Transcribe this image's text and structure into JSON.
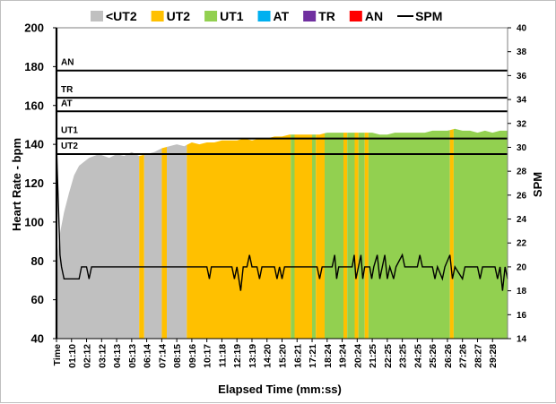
{
  "chart_data": {
    "type": "area",
    "legend": {
      "placement": "top",
      "items": [
        {
          "name": "<UT2",
          "color": "#c0c0c0",
          "kind": "box"
        },
        {
          "name": "UT2",
          "color": "#ffc000",
          "kind": "box"
        },
        {
          "name": "UT1",
          "color": "#92d050",
          "kind": "box"
        },
        {
          "name": "AT",
          "color": "#00b0f0",
          "kind": "box"
        },
        {
          "name": "TR",
          "color": "#7030a0",
          "kind": "box"
        },
        {
          "name": "AN",
          "color": "#ff0000",
          "kind": "box"
        },
        {
          "name": "SPM",
          "color": "#000000",
          "kind": "line"
        }
      ]
    },
    "xlabel": "Elapsed Time (mm:ss)",
    "ylabel": "Heart Rate - bpm",
    "y2label": "SPM",
    "ylim": [
      40,
      200
    ],
    "y2lim": [
      14,
      40
    ],
    "yticks": [
      40,
      60,
      80,
      100,
      120,
      140,
      160,
      180,
      200
    ],
    "y2ticks": [
      14,
      16,
      18,
      20,
      22,
      24,
      26,
      28,
      30,
      32,
      34,
      36,
      38,
      40
    ],
    "xlim": [
      0,
      1800
    ],
    "xtick_labels": [
      "Time",
      "01:10",
      "02:12",
      "03:12",
      "04:13",
      "05:13",
      "06:14",
      "07:14",
      "08:15",
      "09:16",
      "10:17",
      "11:18",
      "12:19",
      "13:19",
      "14:20",
      "15:20",
      "16:21",
      "17:21",
      "18:24",
      "19:24",
      "20:24",
      "21:25",
      "22:25",
      "23:25",
      "24:25",
      "25:26",
      "26:26",
      "27:26",
      "28:27",
      "29:28"
    ],
    "zones": [
      {
        "name": "AN",
        "hr": 178
      },
      {
        "name": "TR",
        "hr": 164
      },
      {
        "name": "AT",
        "hr": 157
      },
      {
        "name": "UT1",
        "hr": 143
      },
      {
        "name": "UT2",
        "hr": 135
      }
    ],
    "heart_rate": {
      "name": "Heart Rate",
      "zone_colors": {
        "below_ut2": "#c0c0c0",
        "ut2": "#ffc000",
        "ut1": "#92d050"
      },
      "points": [
        [
          0,
          40
        ],
        [
          5,
          85
        ],
        [
          15,
          95
        ],
        [
          30,
          105
        ],
        [
          50,
          115
        ],
        [
          70,
          124
        ],
        [
          90,
          129
        ],
        [
          110,
          131
        ],
        [
          130,
          133
        ],
        [
          150,
          134
        ],
        [
          170,
          135
        ],
        [
          190,
          134
        ],
        [
          210,
          133
        ],
        [
          240,
          135
        ],
        [
          270,
          134
        ],
        [
          300,
          136
        ],
        [
          330,
          134
        ],
        [
          360,
          135
        ],
        [
          390,
          136
        ],
        [
          420,
          138
        ],
        [
          450,
          139
        ],
        [
          480,
          140
        ],
        [
          510,
          139
        ],
        [
          540,
          141
        ],
        [
          570,
          140
        ],
        [
          600,
          141
        ],
        [
          630,
          141
        ],
        [
          660,
          142
        ],
        [
          690,
          142
        ],
        [
          720,
          142
        ],
        [
          750,
          143
        ],
        [
          780,
          142
        ],
        [
          810,
          143
        ],
        [
          840,
          143
        ],
        [
          870,
          144
        ],
        [
          900,
          144
        ],
        [
          930,
          145
        ],
        [
          960,
          145
        ],
        [
          990,
          145
        ],
        [
          1020,
          145
        ],
        [
          1050,
          145
        ],
        [
          1080,
          146
        ],
        [
          1110,
          146
        ],
        [
          1140,
          146
        ],
        [
          1170,
          146
        ],
        [
          1200,
          146
        ],
        [
          1230,
          146
        ],
        [
          1260,
          146
        ],
        [
          1290,
          145
        ],
        [
          1320,
          145
        ],
        [
          1350,
          146
        ],
        [
          1380,
          146
        ],
        [
          1410,
          146
        ],
        [
          1440,
          146
        ],
        [
          1470,
          146
        ],
        [
          1500,
          147
        ],
        [
          1530,
          147
        ],
        [
          1560,
          147
        ],
        [
          1590,
          148
        ],
        [
          1620,
          147
        ],
        [
          1650,
          147
        ],
        [
          1680,
          146
        ],
        [
          1710,
          147
        ],
        [
          1740,
          146
        ],
        [
          1770,
          147
        ],
        [
          1800,
          147
        ]
      ],
      "zone_segments": [
        {
          "zone": "<UT2",
          "from": 0,
          "to": 330
        },
        {
          "zone": "UT2",
          "from": 330,
          "to": 350
        },
        {
          "zone": "<UT2",
          "from": 350,
          "to": 420
        },
        {
          "zone": "UT2",
          "from": 420,
          "to": 440
        },
        {
          "zone": "<UT2",
          "from": 440,
          "to": 520
        },
        {
          "zone": "UT2",
          "from": 520,
          "to": 935
        },
        {
          "zone": "UT1",
          "from": 935,
          "to": 950
        },
        {
          "zone": "UT2",
          "from": 950,
          "to": 1020
        },
        {
          "zone": "UT1",
          "from": 1020,
          "to": 1035
        },
        {
          "zone": "UT2",
          "from": 1035,
          "to": 1070
        },
        {
          "zone": "UT1",
          "from": 1070,
          "to": 1145
        },
        {
          "zone": "UT2",
          "from": 1145,
          "to": 1160
        },
        {
          "zone": "UT1",
          "from": 1160,
          "to": 1190
        },
        {
          "zone": "UT2",
          "from": 1190,
          "to": 1205
        },
        {
          "zone": "UT1",
          "from": 1205,
          "to": 1230
        },
        {
          "zone": "UT2",
          "from": 1230,
          "to": 1245
        },
        {
          "zone": "UT1",
          "from": 1245,
          "to": 1570
        },
        {
          "zone": "UT2",
          "from": 1570,
          "to": 1585
        },
        {
          "zone": "UT1",
          "from": 1585,
          "to": 1800
        }
      ]
    },
    "spm": {
      "name": "SPM",
      "color": "#000000",
      "points": [
        [
          0,
          30
        ],
        [
          8,
          25
        ],
        [
          14,
          21
        ],
        [
          20,
          20
        ],
        [
          30,
          19
        ],
        [
          60,
          19
        ],
        [
          90,
          19
        ],
        [
          100,
          20
        ],
        [
          120,
          20
        ],
        [
          130,
          19
        ],
        [
          140,
          20
        ],
        [
          600,
          20
        ],
        [
          610,
          19
        ],
        [
          618,
          20
        ],
        [
          700,
          20
        ],
        [
          710,
          19
        ],
        [
          720,
          20
        ],
        [
          735,
          18
        ],
        [
          745,
          20
        ],
        [
          760,
          20
        ],
        [
          770,
          21
        ],
        [
          780,
          20
        ],
        [
          800,
          20
        ],
        [
          810,
          19
        ],
        [
          820,
          20
        ],
        [
          870,
          20
        ],
        [
          880,
          19
        ],
        [
          890,
          20
        ],
        [
          900,
          19
        ],
        [
          910,
          20
        ],
        [
          1040,
          20
        ],
        [
          1050,
          19
        ],
        [
          1060,
          20
        ],
        [
          1100,
          20
        ],
        [
          1110,
          21
        ],
        [
          1118,
          19
        ],
        [
          1126,
          20
        ],
        [
          1180,
          20
        ],
        [
          1188,
          21
        ],
        [
          1195,
          19
        ],
        [
          1205,
          20
        ],
        [
          1215,
          21
        ],
        [
          1222,
          19
        ],
        [
          1230,
          20
        ],
        [
          1250,
          20
        ],
        [
          1258,
          19
        ],
        [
          1266,
          20
        ],
        [
          1280,
          21
        ],
        [
          1290,
          19
        ],
        [
          1300,
          20
        ],
        [
          1310,
          21
        ],
        [
          1320,
          19
        ],
        [
          1330,
          20
        ],
        [
          1345,
          19
        ],
        [
          1355,
          20
        ],
        [
          1380,
          21
        ],
        [
          1390,
          20
        ],
        [
          1440,
          20
        ],
        [
          1450,
          21
        ],
        [
          1460,
          20
        ],
        [
          1500,
          20
        ],
        [
          1510,
          19
        ],
        [
          1520,
          20
        ],
        [
          1540,
          19
        ],
        [
          1550,
          20
        ],
        [
          1570,
          21
        ],
        [
          1580,
          19
        ],
        [
          1590,
          20
        ],
        [
          1620,
          19
        ],
        [
          1630,
          20
        ],
        [
          1680,
          20
        ],
        [
          1690,
          19
        ],
        [
          1700,
          20
        ],
        [
          1750,
          20
        ],
        [
          1760,
          19
        ],
        [
          1770,
          20
        ],
        [
          1780,
          18
        ],
        [
          1790,
          20
        ],
        [
          1800,
          19
        ]
      ]
    }
  }
}
